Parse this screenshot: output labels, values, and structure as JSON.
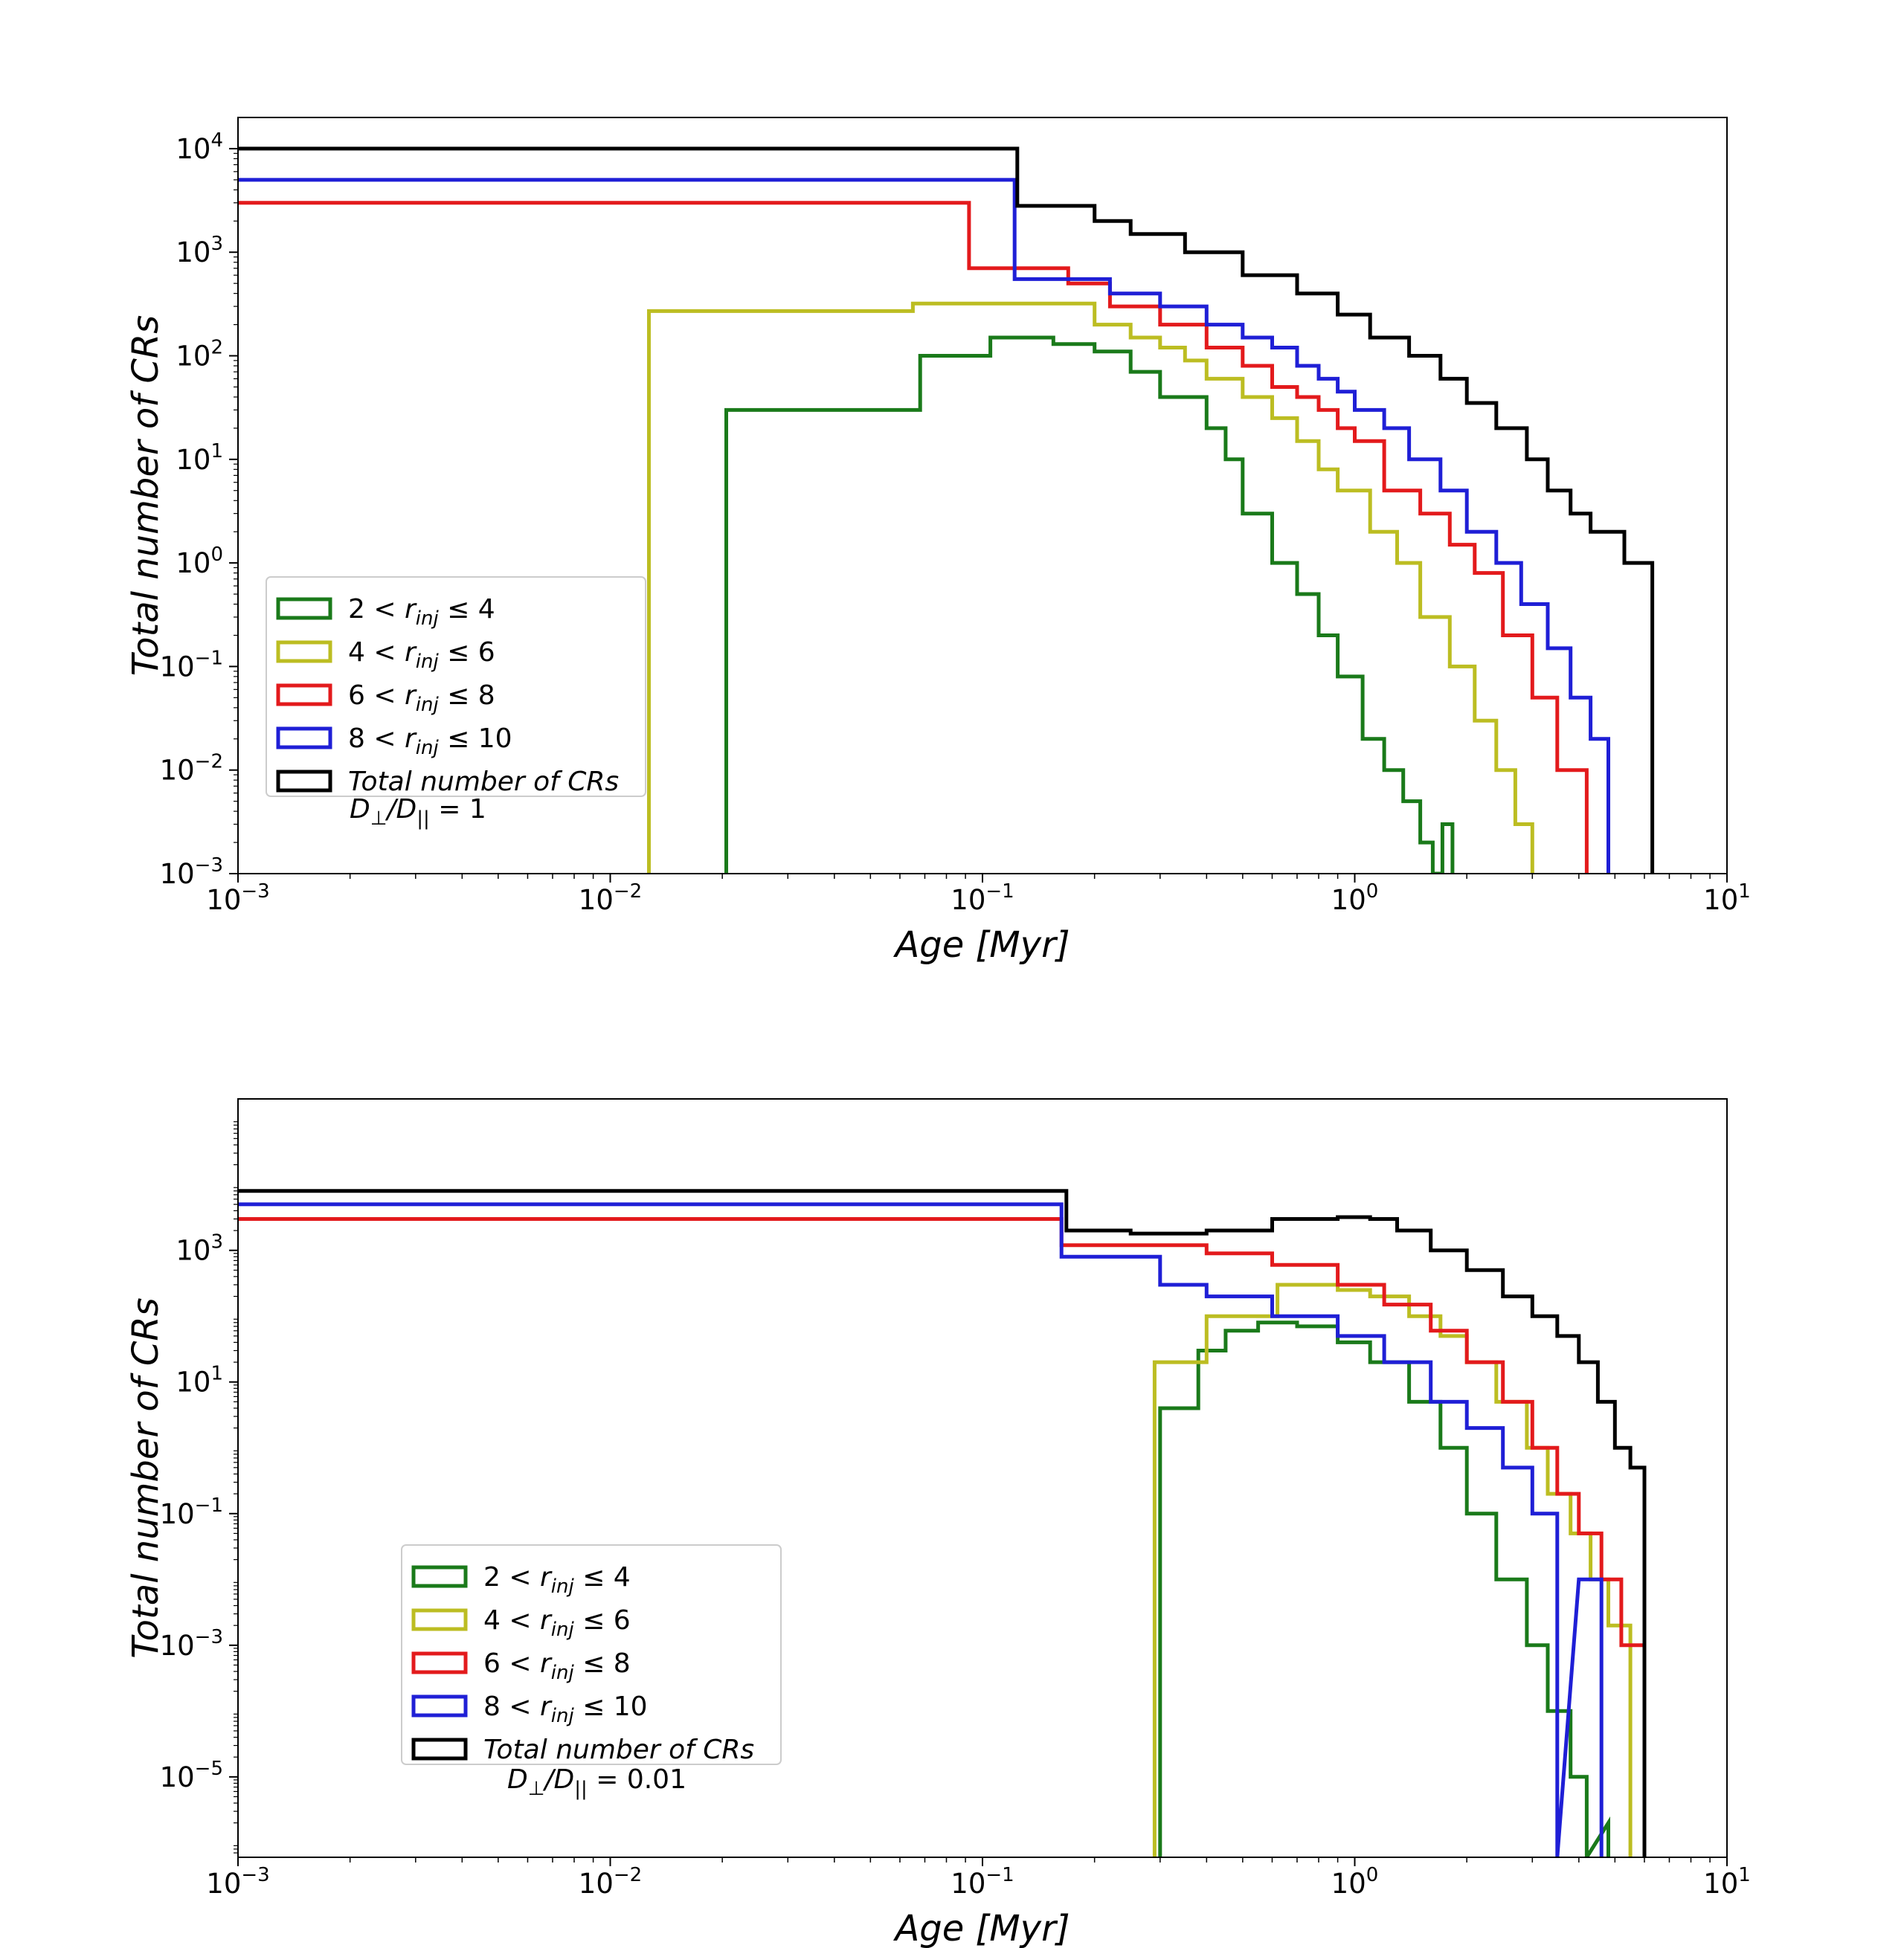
{
  "chart_data": [
    {
      "type": "histogram-step",
      "xlabel": "Age [Myr]",
      "ylabel": "Total number of CRs",
      "xscale": "log",
      "yscale": "log",
      "xlim": [
        0.001,
        10
      ],
      "ylim": [
        0.001,
        20000
      ],
      "xticks": [
        "10^-3",
        "10^-2",
        "10^-1",
        "10^0",
        "10^1"
      ],
      "yticks": [
        "10^-3",
        "10^-2",
        "10^-1",
        "10^0",
        "10^1",
        "10^2",
        "10^3",
        "10^4"
      ],
      "ytick_values": [
        -3,
        -2,
        -1,
        0,
        1,
        2,
        3,
        4
      ],
      "legend_position": "lower-left",
      "annotation": "D⊥/D|| = 1",
      "series": [
        {
          "name": "2 < r_inj ≤ 4",
          "color": "#1a7a1a",
          "x": [
            0.0205,
            0.0205,
            0.068,
            0.068,
            0.105,
            0.105,
            0.155,
            0.155,
            0.2,
            0.2,
            0.25,
            0.25,
            0.3,
            0.3,
            0.4,
            0.4,
            0.45,
            0.45,
            0.5,
            0.5,
            0.6,
            0.6,
            0.7,
            0.7,
            0.8,
            0.8,
            0.9,
            0.9,
            1.05,
            1.05,
            1.2,
            1.2,
            1.35,
            1.35,
            1.5,
            1.5,
            1.62,
            1.62,
            1.72,
            1.72,
            1.83,
            1.83
          ],
          "y": [
            0.001,
            30,
            30,
            100,
            100,
            150,
            150,
            130,
            130,
            110,
            110,
            70,
            70,
            40,
            40,
            20,
            20,
            10,
            10,
            3,
            3,
            1,
            1,
            0.5,
            0.5,
            0.2,
            0.2,
            0.08,
            0.08,
            0.02,
            0.02,
            0.01,
            0.01,
            0.005,
            0.005,
            0.002,
            0.002,
            0.001,
            0.001,
            0.003,
            0.003,
            0.001
          ]
        },
        {
          "name": "4 < r_inj ≤ 6",
          "color": "#bcbd22",
          "x": [
            0.0127,
            0.0127,
            0.065,
            0.065,
            0.2,
            0.2,
            0.25,
            0.25,
            0.3,
            0.3,
            0.35,
            0.35,
            0.4,
            0.4,
            0.5,
            0.5,
            0.6,
            0.6,
            0.7,
            0.7,
            0.8,
            0.8,
            0.9,
            0.9,
            1.1,
            1.1,
            1.3,
            1.3,
            1.5,
            1.5,
            1.8,
            1.8,
            2.1,
            2.1,
            2.4,
            2.4,
            2.7,
            2.7,
            3.0,
            3.0
          ],
          "y": [
            0.001,
            270,
            270,
            320,
            320,
            200,
            200,
            150,
            150,
            120,
            120,
            90,
            90,
            60,
            60,
            40,
            40,
            25,
            25,
            15,
            15,
            8,
            8,
            5,
            5,
            2,
            2,
            1,
            1,
            0.3,
            0.3,
            0.1,
            0.1,
            0.03,
            0.03,
            0.01,
            0.01,
            0.003,
            0.003,
            0.001
          ]
        },
        {
          "name": "6 < r_inj ≤ 8",
          "color": "#e31a1c",
          "x": [
            0.001,
            0.001,
            0.092,
            0.092,
            0.17,
            0.17,
            0.22,
            0.22,
            0.3,
            0.3,
            0.4,
            0.4,
            0.5,
            0.5,
            0.6,
            0.6,
            0.7,
            0.7,
            0.8,
            0.8,
            0.9,
            0.9,
            1.0,
            1.0,
            1.2,
            1.2,
            1.5,
            1.5,
            1.8,
            1.8,
            2.1,
            2.1,
            2.5,
            2.5,
            3.0,
            3.0,
            3.5,
            3.5,
            4.2,
            4.2
          ],
          "y": [
            3000,
            3000,
            3000,
            700,
            700,
            500,
            500,
            300,
            300,
            200,
            200,
            120,
            120,
            80,
            80,
            50,
            50,
            40,
            40,
            30,
            30,
            20,
            20,
            15,
            15,
            5,
            5,
            3,
            3,
            1.5,
            1.5,
            0.8,
            0.8,
            0.2,
            0.2,
            0.05,
            0.05,
            0.01,
            0.01,
            0.001
          ]
        },
        {
          "name": "8 < r_inj ≤ 10",
          "color": "#1f1fd6",
          "x": [
            0.001,
            0.001,
            0.122,
            0.122,
            0.22,
            0.22,
            0.3,
            0.3,
            0.4,
            0.4,
            0.5,
            0.5,
            0.6,
            0.6,
            0.7,
            0.7,
            0.8,
            0.8,
            0.9,
            0.9,
            1.0,
            1.0,
            1.2,
            1.2,
            1.4,
            1.4,
            1.7,
            1.7,
            2.0,
            2.0,
            2.4,
            2.4,
            2.8,
            2.8,
            3.3,
            3.3,
            3.8,
            3.8,
            4.3,
            4.3,
            4.8,
            4.8
          ],
          "y": [
            5000,
            5000,
            5000,
            550,
            550,
            400,
            400,
            300,
            300,
            200,
            200,
            150,
            150,
            120,
            120,
            80,
            80,
            60,
            60,
            45,
            45,
            30,
            30,
            20,
            20,
            10,
            10,
            5,
            5,
            2,
            2,
            1,
            1,
            0.4,
            0.4,
            0.15,
            0.15,
            0.05,
            0.05,
            0.02,
            0.02,
            0.001
          ]
        },
        {
          "name": "Total number of CRs",
          "color": "#000000",
          "x": [
            0.001,
            0.001,
            0.124,
            0.124,
            0.2,
            0.2,
            0.25,
            0.25,
            0.35,
            0.35,
            0.5,
            0.5,
            0.7,
            0.7,
            0.9,
            0.9,
            1.1,
            1.1,
            1.4,
            1.4,
            1.7,
            1.7,
            2.0,
            2.0,
            2.4,
            2.4,
            2.9,
            2.9,
            3.3,
            3.3,
            3.8,
            3.8,
            4.3,
            4.3,
            4.8,
            4.8,
            5.3,
            5.3,
            5.8,
            5.8,
            6.3,
            6.3
          ],
          "y": [
            10000,
            10000,
            10000,
            2800,
            2800,
            2000,
            2000,
            1500,
            1500,
            1000,
            1000,
            600,
            600,
            400,
            400,
            250,
            250,
            150,
            150,
            100,
            100,
            60,
            60,
            35,
            35,
            20,
            20,
            10,
            10,
            5,
            5,
            3,
            3,
            2,
            2,
            2,
            2,
            1,
            1,
            1,
            1,
            0.001
          ]
        }
      ]
    },
    {
      "type": "histogram-step",
      "xlabel": "Age [Myr]",
      "ylabel": "Total number of CRs",
      "xscale": "log",
      "yscale": "log",
      "xlim": [
        0.001,
        10
      ],
      "ylim": [
        6e-07,
        200000
      ],
      "xticks": [
        "10^-3",
        "10^-2",
        "10^-1",
        "10^0",
        "10^1"
      ],
      "yticks": [
        "10^-5",
        "10^-3",
        "10^-1",
        "10^1",
        "10^3"
      ],
      "ytick_values": [
        -5,
        -3,
        -1,
        1,
        3
      ],
      "legend_position": "lower-left",
      "annotation": "D⊥/D|| = 0.01",
      "series": [
        {
          "name": "2 < r_inj ≤ 4",
          "color": "#1a7a1a",
          "x": [
            0.3,
            0.3,
            0.38,
            0.38,
            0.45,
            0.45,
            0.55,
            0.55,
            0.7,
            0.7,
            0.9,
            0.9,
            1.1,
            1.1,
            1.4,
            1.4,
            1.7,
            1.7,
            2.0,
            2.0,
            2.4,
            2.4,
            2.9,
            2.9,
            3.3,
            3.3,
            3.8,
            3.8,
            4.2,
            4.2,
            4.8,
            4.8
          ],
          "y": [
            6e-07,
            4,
            4,
            30,
            30,
            60,
            60,
            80,
            80,
            70,
            70,
            40,
            40,
            20,
            20,
            5,
            5,
            1,
            1,
            0.1,
            0.1,
            0.01,
            0.01,
            0.001,
            0.001,
            0.0001,
            0.0001,
            1e-05,
            1e-05,
            6e-07,
            2e-06,
            6e-07
          ]
        },
        {
          "name": "4 < r_inj ≤ 6",
          "color": "#bcbd22",
          "x": [
            0.29,
            0.29,
            0.4,
            0.4,
            0.62,
            0.62,
            0.9,
            0.9,
            1.1,
            1.1,
            1.4,
            1.4,
            1.7,
            1.7,
            2.0,
            2.0,
            2.4,
            2.4,
            2.9,
            2.9,
            3.3,
            3.3,
            3.8,
            3.8,
            4.3,
            4.3,
            4.8,
            4.8,
            5.5,
            5.5
          ],
          "y": [
            6e-07,
            20,
            20,
            100,
            100,
            300,
            300,
            250,
            250,
            200,
            200,
            100,
            100,
            50,
            50,
            20,
            20,
            5,
            5,
            1,
            1,
            0.2,
            0.2,
            0.05,
            0.05,
            0.01,
            0.01,
            0.002,
            0.002,
            6e-07
          ]
        },
        {
          "name": "6 < r_inj ≤ 8",
          "color": "#e31a1c",
          "x": [
            0.001,
            0.001,
            0.163,
            0.163,
            0.4,
            0.4,
            0.6,
            0.6,
            0.9,
            0.9,
            1.2,
            1.2,
            1.6,
            1.6,
            2.0,
            2.0,
            2.5,
            2.5,
            3.0,
            3.0,
            3.5,
            3.5,
            4.0,
            4.0,
            4.6,
            4.6,
            5.2,
            5.2,
            6.0,
            6.0
          ],
          "y": [
            3000,
            3000,
            3000,
            1200,
            1200,
            900,
            900,
            600,
            600,
            300,
            300,
            150,
            150,
            60,
            60,
            20,
            20,
            5,
            5,
            1,
            1,
            0.2,
            0.2,
            0.05,
            0.05,
            0.01,
            0.01,
            0.001,
            0.001,
            6e-07
          ]
        },
        {
          "name": "8 < r_inj ≤ 10",
          "color": "#1f1fd6",
          "x": [
            0.001,
            0.001,
            0.163,
            0.163,
            0.3,
            0.3,
            0.4,
            0.4,
            0.6,
            0.6,
            0.9,
            0.9,
            1.2,
            1.2,
            1.6,
            1.6,
            2.0,
            2.0,
            2.5,
            2.5,
            3.0,
            3.0,
            3.5,
            3.5,
            4.0,
            4.0,
            4.6,
            4.6
          ],
          "y": [
            5000,
            5000,
            5000,
            800,
            800,
            300,
            300,
            200,
            200,
            100,
            100,
            50,
            50,
            20,
            20,
            5,
            5,
            2,
            2,
            0.5,
            0.5,
            0.1,
            0.1,
            6e-07,
            0.01,
            0.01,
            0.01,
            6e-07
          ]
        },
        {
          "name": "Total number of CRs",
          "color": "#000000",
          "x": [
            0.001,
            0.001,
            0.168,
            0.168,
            0.25,
            0.25,
            0.4,
            0.4,
            0.6,
            0.6,
            0.9,
            0.9,
            1.1,
            1.1,
            1.3,
            1.3,
            1.6,
            1.6,
            2.0,
            2.0,
            2.5,
            2.5,
            3.0,
            3.0,
            3.5,
            3.5,
            4.0,
            4.0,
            4.5,
            4.5,
            5.0,
            5.0,
            5.5,
            5.5,
            6.0,
            6.0
          ],
          "y": [
            8000,
            8000,
            8000,
            2000,
            2000,
            1800,
            1800,
            2000,
            2000,
            3000,
            3000,
            3200,
            3200,
            3000,
            3000,
            2000,
            2000,
            1000,
            1000,
            500,
            500,
            200,
            200,
            100,
            100,
            50,
            50,
            20,
            20,
            5,
            5,
            1,
            1,
            0.5,
            0.5,
            6e-07
          ]
        }
      ]
    }
  ]
}
